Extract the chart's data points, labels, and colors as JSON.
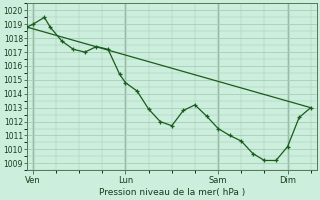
{
  "xlabel": "Pression niveau de la mer( hPa )",
  "bg_color": "#cceedd",
  "grid_color": "#aaccbb",
  "line_color": "#1a5c1a",
  "ylim": [
    1008.5,
    1020.5
  ],
  "yticks": [
    1009,
    1010,
    1011,
    1012,
    1013,
    1014,
    1015,
    1016,
    1017,
    1018,
    1019,
    1020
  ],
  "xtick_labels": [
    "Ven",
    "Lun",
    "Sam",
    "Dim"
  ],
  "xtick_positions": [
    0.5,
    8.5,
    16.5,
    22.5
  ],
  "xmin": 0,
  "xmax": 25,
  "vline_positions": [
    0.5,
    8.5,
    16.5,
    22.5
  ],
  "line1_x": [
    0.0,
    0.5,
    1.5,
    2.0,
    3.0,
    4.0,
    5.0,
    6.0,
    7.0,
    8.0,
    8.5,
    9.5,
    10.5,
    11.5,
    12.5,
    13.5,
    14.5,
    15.5,
    16.5,
    17.5,
    18.5,
    19.5,
    20.5,
    21.5,
    22.5,
    23.5,
    24.5
  ],
  "line1_y": [
    1018.8,
    1019.0,
    1019.5,
    1018.8,
    1017.8,
    1017.2,
    1017.0,
    1017.4,
    1017.2,
    1015.4,
    1014.8,
    1014.2,
    1012.9,
    1012.0,
    1011.7,
    1012.8,
    1013.2,
    1012.4,
    1011.5,
    1011.0,
    1010.6,
    1009.7,
    1009.2,
    1009.2,
    1010.2,
    1012.3,
    1013.0
  ],
  "line2_x": [
    0.0,
    24.5
  ],
  "line2_y": [
    1018.8,
    1013.0
  ]
}
